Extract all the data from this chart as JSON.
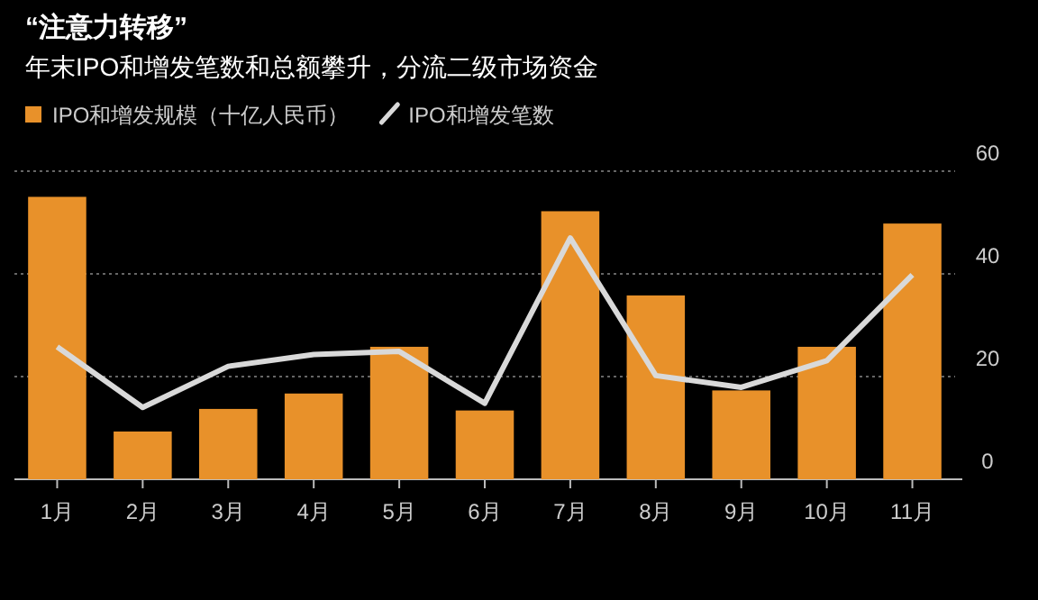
{
  "chart_data": {
    "type": "bar",
    "title": "“注意力转移”",
    "subtitle": "年末IPO和增发笔数和总额攀升，分流二级市场资金",
    "categories": [
      "1月",
      "2月",
      "3月",
      "4月",
      "5月",
      "6月",
      "7月",
      "8月",
      "9月",
      "10月",
      "11月"
    ],
    "series": [
      {
        "name": "IPO和增发规模（十亿人民币）",
        "color": "#e8912a",
        "values": [
          55,
          9.3,
          13.7,
          16.7,
          25.8,
          13.4,
          52.2,
          35.8,
          17.3,
          25.8,
          49.8
        ]
      },
      {
        "name": "IPO和增发笔数",
        "type": "line",
        "color": "#d9d9d9",
        "values": [
          25.8,
          14,
          22,
          24.3,
          24.9,
          14.8,
          47,
          20.2,
          17.9,
          23.1,
          39.8
        ]
      }
    ],
    "ylim": [
      0,
      60
    ],
    "yticks": [
      0,
      20,
      40,
      60
    ],
    "grid": "y",
    "legend": "top left"
  }
}
